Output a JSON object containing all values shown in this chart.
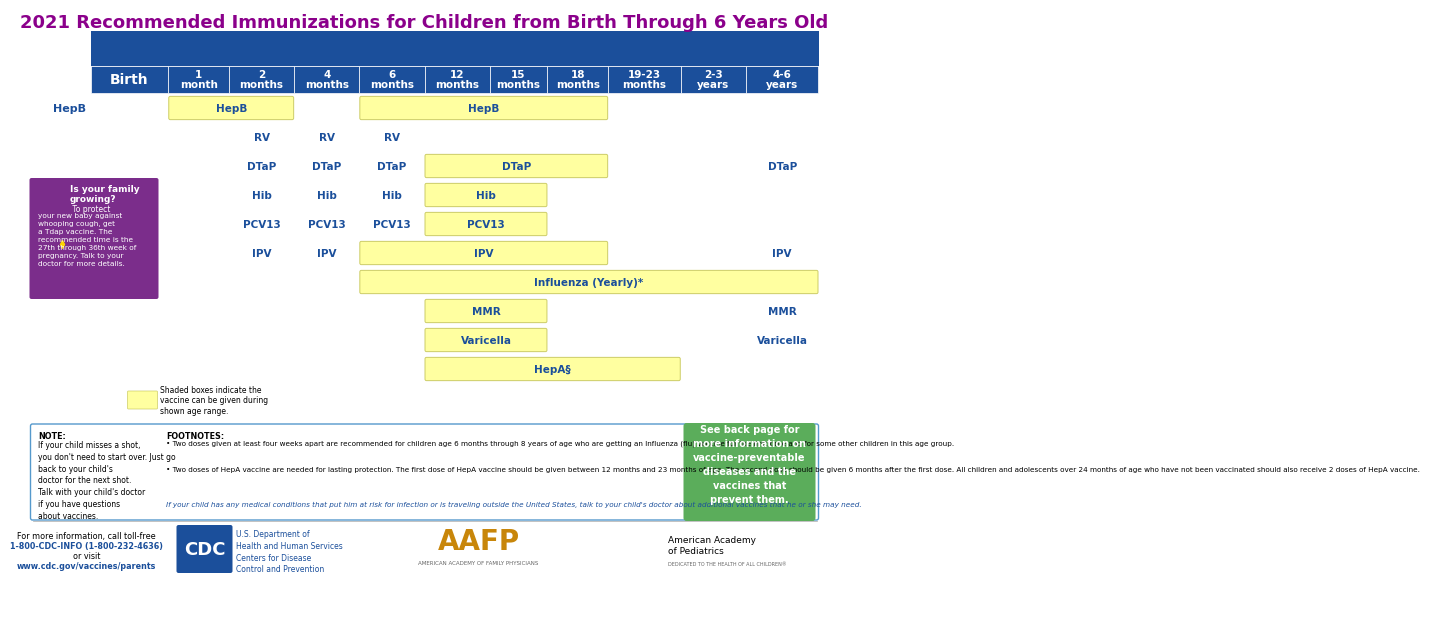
{
  "title": "2021 Recommended Immunizations for Children from Birth Through 6 Years Old",
  "title_color": "#8B008B",
  "bg_color": "#FFFFFF",
  "header_bg": "#1B4F9B",
  "header_text_color": "#FFFFFF",
  "age_columns": [
    "Birth",
    "1\nmonth",
    "2\nmonths",
    "4\nmonths",
    "6\nmonths",
    "12\nmonths",
    "15\nmonths",
    "18\nmonths",
    "19-23\nmonths",
    "2-3\nyears",
    "4-6\nyears"
  ],
  "yellow_box_color": "#FFFFA0",
  "yellow_box_edge": "#CCCC66",
  "blue_text_color": "#1B4F9B",
  "note_text_lines": [
    "NOTE:",
    "If your child misses a shot,",
    "you don't need to start over. Just go",
    "back to your child's",
    "doctor for the next shot.",
    "Talk with your child's doctor",
    "if you have questions",
    "about vaccines."
  ],
  "footnote_title": "FOOTNOTES:",
  "footnote_bullet1": "Two doses given at least four weeks apart are recommended for children age 6 months through 8 years of age who are getting an Influenza (flu) vaccine for the first time and for some other children in this age group.",
  "footnote_bullet2": "Two doses of HepA vaccine are needed for lasting protection. The first dose of HepA vaccine should be given between 12 months and 23 months of age. The second dose should be given 6 months after the first dose. All children and adolescents over 24 months of age who have not been vaccinated should also receive 2 doses of HepA vaccine.",
  "footnote_italic": "If your child has any medical conditions that put him at risk for infection or is traveling outside the United States, talk to your child's doctor about additional vaccines that he or she may need.",
  "green_box_text": "See back page for\nmore information on\nvaccine-preventable\ndiseases and the\nvaccines that\nprevent them.",
  "green_box_color": "#5BAD5B",
  "purple_box_color": "#7B2D8B",
  "contact_line1": "For more information, call toll-free",
  "contact_line2": "1-800-CDC-INFO (1-800-232-4636)",
  "contact_line3": "or visit",
  "contact_line4": "www.cdc.gov/vaccines/parents",
  "cdc_text": "U.S. Department of\nHealth and Human Services\nCenters for Disease\nControl and Prevention",
  "aap_text": "American Academy\nof Pediatrics",
  "aap_sub": "DEDICATED TO THE HEALTH OF ALL CHILDREN®",
  "aafp_sub": "AMERICAN ACADEMY OF FAMILY PHYSICIANS",
  "legend_text": "Shaded boxes indicate the\nvaccine can be given during\nshown age range."
}
